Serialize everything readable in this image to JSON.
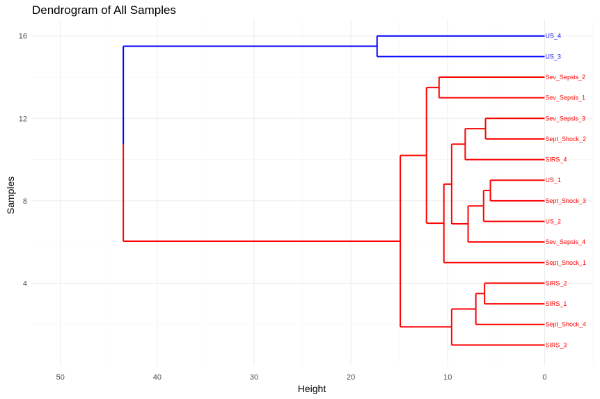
{
  "chart_data": {
    "type": "dendrogram",
    "title": "Dendrogram of All Samples",
    "xlabel": "Height",
    "ylabel": "Samples",
    "xlim": [
      53,
      -5
    ],
    "ylim": [
      0,
      16.8
    ],
    "x_ticks": [
      50,
      40,
      30,
      20,
      10,
      0
    ],
    "y_ticks": [
      4,
      8,
      12,
      16
    ],
    "grid": true,
    "colors": {
      "cluster1": "#ff0000",
      "cluster2": "#0000ff"
    },
    "leaves": [
      {
        "label": "SIRS_3",
        "y": 1,
        "cluster": 1
      },
      {
        "label": "Sept_Shock_4",
        "y": 2,
        "cluster": 1
      },
      {
        "label": "SIRS_1",
        "y": 3,
        "cluster": 1
      },
      {
        "label": "SIRS_2",
        "y": 4,
        "cluster": 1
      },
      {
        "label": "Sept_Shock_1",
        "y": 5,
        "cluster": 1
      },
      {
        "label": "Sev_Sepsis_4",
        "y": 6,
        "cluster": 1
      },
      {
        "label": "US_2",
        "y": 7,
        "cluster": 1
      },
      {
        "label": "Sept_Shock_3",
        "y": 8,
        "cluster": 1
      },
      {
        "label": "US_1",
        "y": 9,
        "cluster": 1
      },
      {
        "label": "SIRS_4",
        "y": 10,
        "cluster": 1
      },
      {
        "label": "Sept_Shock_2",
        "y": 11,
        "cluster": 1
      },
      {
        "label": "Sev_Sepsis_3",
        "y": 12,
        "cluster": 1
      },
      {
        "label": "Sev_Sepsis_1",
        "y": 13,
        "cluster": 1
      },
      {
        "label": "Sev_Sepsis_2",
        "y": 14,
        "cluster": 1
      },
      {
        "label": "US_3",
        "y": 15,
        "cluster": 2
      },
      {
        "label": "US_4",
        "y": 16,
        "cluster": 2
      }
    ],
    "merges": [
      {
        "height": 6.2,
        "y1": 3,
        "y2": 4,
        "ym": 3.5,
        "cluster": 1
      },
      {
        "height": 7.1,
        "y1": 2,
        "y2": 3.5,
        "ym": 2.75,
        "cluster": 1
      },
      {
        "height": 9.6,
        "y1": 1,
        "y2": 2.75,
        "ym": 1.88,
        "cluster": 1
      },
      {
        "height": 5.6,
        "y1": 8,
        "y2": 9,
        "ym": 8.5,
        "cluster": 1
      },
      {
        "height": 6.3,
        "y1": 7,
        "y2": 8.5,
        "ym": 7.75,
        "cluster": 1
      },
      {
        "height": 7.9,
        "y1": 6,
        "y2": 7.75,
        "ym": 6.88,
        "cluster": 1
      },
      {
        "height": 6.1,
        "y1": 11,
        "y2": 12,
        "ym": 11.5,
        "cluster": 1
      },
      {
        "height": 8.2,
        "y1": 10,
        "y2": 11.5,
        "ym": 10.75,
        "cluster": 1
      },
      {
        "height": 9.6,
        "y1": 6.88,
        "y2": 10.75,
        "ym": 8.81,
        "cluster": 1
      },
      {
        "height": 10.4,
        "y1": 5,
        "y2": 8.81,
        "ym": 6.91,
        "cluster": 1
      },
      {
        "height": 10.9,
        "y1": 13,
        "y2": 14,
        "ym": 13.5,
        "cluster": 1
      },
      {
        "height": 12.2,
        "y1": 6.91,
        "y2": 13.5,
        "ym": 10.2,
        "cluster": 1
      },
      {
        "height": 14.9,
        "y1": 1.88,
        "y2": 10.2,
        "ym": 6.04,
        "cluster": 1
      },
      {
        "height": 17.3,
        "y1": 15,
        "y2": 16,
        "ym": 15.5,
        "cluster": 2
      },
      {
        "height": 43.5,
        "y1": 6.04,
        "y2": 15.5,
        "ym": 10.75,
        "cluster": 0
      }
    ]
  }
}
